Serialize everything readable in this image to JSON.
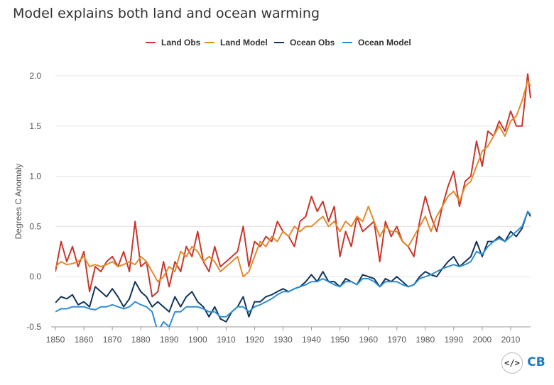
{
  "chart_data": {
    "type": "line",
    "title": "Model explains both land and ocean warming",
    "ylabel": "Degrees C Anomaly",
    "xlabel": "",
    "ylim": [
      -0.5,
      2.1
    ],
    "xlim": [
      1850,
      2017
    ],
    "xticks": [
      "1850",
      "1860",
      "1870",
      "1880",
      "1890",
      "1900",
      "1910",
      "1920",
      "1930",
      "1940",
      "1950",
      "1960",
      "1970",
      "1980",
      "1990",
      "2000",
      "2010"
    ],
    "yticks": [
      "2.0",
      "1.5",
      "1.0",
      "0.5",
      "0.0",
      "-0.5"
    ],
    "grid": "horizontal",
    "legend_position": "top-center",
    "series": [
      {
        "name": "Land Obs",
        "color": "#c8372d",
        "x": [
          1850,
          1852,
          1854,
          1856,
          1858,
          1860,
          1862,
          1864,
          1866,
          1868,
          1870,
          1872,
          1874,
          1876,
          1878,
          1880,
          1882,
          1884,
          1886,
          1888,
          1890,
          1892,
          1894,
          1896,
          1898,
          1900,
          1902,
          1904,
          1906,
          1908,
          1910,
          1912,
          1914,
          1916,
          1918,
          1920,
          1922,
          1924,
          1926,
          1928,
          1930,
          1932,
          1934,
          1936,
          1938,
          1940,
          1942,
          1944,
          1946,
          1948,
          1950,
          1952,
          1954,
          1956,
          1958,
          1960,
          1962,
          1964,
          1966,
          1968,
          1970,
          1972,
          1974,
          1976,
          1978,
          1980,
          1982,
          1984,
          1986,
          1988,
          1990,
          1992,
          1994,
          1996,
          1998,
          2000,
          2002,
          2004,
          2006,
          2008,
          2010,
          2012,
          2014,
          2016,
          2017
        ],
        "y": [
          0.05,
          0.35,
          0.15,
          0.3,
          0.1,
          0.25,
          -0.15,
          0.1,
          0.05,
          0.15,
          0.2,
          0.1,
          0.25,
          0.05,
          0.55,
          0.1,
          0.15,
          -0.2,
          -0.15,
          0.15,
          -0.1,
          0.15,
          0.05,
          0.3,
          0.2,
          0.45,
          0.15,
          0.05,
          0.3,
          0.1,
          0.15,
          0.2,
          0.25,
          0.5,
          0.1,
          0.35,
          0.3,
          0.4,
          0.35,
          0.55,
          0.45,
          0.4,
          0.3,
          0.55,
          0.6,
          0.8,
          0.65,
          0.75,
          0.55,
          0.7,
          0.2,
          0.45,
          0.3,
          0.6,
          0.45,
          0.5,
          0.55,
          0.15,
          0.55,
          0.4,
          0.5,
          0.35,
          0.3,
          0.2,
          0.55,
          0.8,
          0.6,
          0.45,
          0.7,
          0.9,
          1.05,
          0.7,
          0.95,
          1.0,
          1.35,
          1.1,
          1.45,
          1.4,
          1.55,
          1.45,
          1.65,
          1.5,
          1.5,
          2.02,
          1.78
        ]
      },
      {
        "name": "Land Model",
        "color": "#e18b2b",
        "x": [
          1850,
          1852,
          1854,
          1856,
          1858,
          1860,
          1862,
          1864,
          1866,
          1868,
          1870,
          1872,
          1874,
          1876,
          1878,
          1880,
          1882,
          1884,
          1886,
          1888,
          1890,
          1892,
          1894,
          1896,
          1898,
          1900,
          1902,
          1904,
          1906,
          1908,
          1910,
          1912,
          1914,
          1916,
          1918,
          1920,
          1922,
          1924,
          1926,
          1928,
          1930,
          1932,
          1934,
          1936,
          1938,
          1940,
          1942,
          1944,
          1946,
          1948,
          1950,
          1952,
          1954,
          1956,
          1958,
          1960,
          1962,
          1964,
          1966,
          1968,
          1970,
          1972,
          1974,
          1976,
          1978,
          1980,
          1982,
          1984,
          1986,
          1988,
          1990,
          1992,
          1994,
          1996,
          1998,
          2000,
          2002,
          2004,
          2006,
          2008,
          2010,
          2012,
          2014,
          2016,
          2017
        ],
        "y": [
          0.1,
          0.15,
          0.12,
          0.13,
          0.15,
          0.2,
          0.1,
          0.12,
          0.1,
          0.12,
          0.15,
          0.1,
          0.12,
          0.15,
          0.12,
          0.2,
          0.15,
          0.05,
          -0.05,
          0.0,
          0.1,
          0.05,
          0.25,
          0.2,
          0.3,
          0.25,
          0.15,
          0.2,
          0.15,
          0.05,
          0.1,
          0.15,
          0.2,
          0.0,
          0.05,
          0.2,
          0.35,
          0.3,
          0.4,
          0.35,
          0.45,
          0.4,
          0.5,
          0.45,
          0.5,
          0.5,
          0.55,
          0.6,
          0.5,
          0.55,
          0.45,
          0.55,
          0.5,
          0.6,
          0.55,
          0.7,
          0.55,
          0.4,
          0.5,
          0.45,
          0.45,
          0.35,
          0.3,
          0.4,
          0.5,
          0.6,
          0.45,
          0.6,
          0.7,
          0.8,
          0.85,
          0.75,
          0.9,
          0.95,
          1.1,
          1.25,
          1.3,
          1.4,
          1.5,
          1.4,
          1.55,
          1.6,
          1.75,
          1.95,
          1.9
        ]
      },
      {
        "name": "Ocean Obs",
        "color": "#12355b",
        "x": [
          1850,
          1852,
          1854,
          1856,
          1858,
          1860,
          1862,
          1864,
          1866,
          1868,
          1870,
          1872,
          1874,
          1876,
          1878,
          1880,
          1882,
          1884,
          1886,
          1888,
          1890,
          1892,
          1894,
          1896,
          1898,
          1900,
          1902,
          1904,
          1906,
          1908,
          1910,
          1912,
          1914,
          1916,
          1918,
          1920,
          1922,
          1924,
          1926,
          1928,
          1930,
          1932,
          1934,
          1936,
          1938,
          1940,
          1942,
          1944,
          1946,
          1948,
          1950,
          1952,
          1954,
          1956,
          1958,
          1960,
          1962,
          1964,
          1966,
          1968,
          1970,
          1972,
          1974,
          1976,
          1978,
          1980,
          1982,
          1984,
          1986,
          1988,
          1990,
          1992,
          1994,
          1996,
          1998,
          2000,
          2002,
          2004,
          2006,
          2008,
          2010,
          2012,
          2014,
          2016,
          2017
        ],
        "y": [
          -0.26,
          -0.2,
          -0.22,
          -0.18,
          -0.28,
          -0.25,
          -0.3,
          -0.1,
          -0.15,
          -0.2,
          -0.12,
          -0.2,
          -0.3,
          -0.22,
          -0.05,
          -0.15,
          -0.2,
          -0.3,
          -0.25,
          -0.3,
          -0.35,
          -0.2,
          -0.3,
          -0.2,
          -0.15,
          -0.25,
          -0.3,
          -0.4,
          -0.3,
          -0.42,
          -0.45,
          -0.35,
          -0.3,
          -0.2,
          -0.4,
          -0.25,
          -0.25,
          -0.2,
          -0.18,
          -0.15,
          -0.12,
          -0.15,
          -0.12,
          -0.1,
          -0.05,
          0.02,
          -0.05,
          0.05,
          -0.05,
          -0.05,
          -0.1,
          -0.02,
          -0.05,
          -0.08,
          0.02,
          0.0,
          -0.02,
          -0.1,
          -0.02,
          -0.05,
          0.0,
          -0.05,
          -0.1,
          -0.08,
          0.0,
          0.05,
          0.02,
          0.0,
          0.08,
          0.15,
          0.2,
          0.1,
          0.15,
          0.2,
          0.35,
          0.2,
          0.35,
          0.35,
          0.4,
          0.35,
          0.45,
          0.4,
          0.48,
          0.65,
          0.6
        ]
      },
      {
        "name": "Ocean Model",
        "color": "#2e8ed0",
        "x": [
          1850,
          1852,
          1854,
          1856,
          1858,
          1860,
          1862,
          1864,
          1866,
          1868,
          1870,
          1872,
          1874,
          1876,
          1878,
          1880,
          1882,
          1884,
          1886,
          1888,
          1890,
          1892,
          1894,
          1896,
          1898,
          1900,
          1902,
          1904,
          1906,
          1908,
          1910,
          1912,
          1914,
          1916,
          1918,
          1920,
          1922,
          1924,
          1926,
          1928,
          1930,
          1932,
          1934,
          1936,
          1938,
          1940,
          1942,
          1944,
          1946,
          1948,
          1950,
          1952,
          1954,
          1956,
          1958,
          1960,
          1962,
          1964,
          1966,
          1968,
          1970,
          1972,
          1974,
          1976,
          1978,
          1980,
          1982,
          1984,
          1986,
          1988,
          1990,
          1992,
          1994,
          1996,
          1998,
          2000,
          2002,
          2004,
          2006,
          2008,
          2010,
          2012,
          2014,
          2016,
          2017
        ],
        "y": [
          -0.35,
          -0.32,
          -0.32,
          -0.3,
          -0.3,
          -0.3,
          -0.32,
          -0.33,
          -0.3,
          -0.3,
          -0.28,
          -0.3,
          -0.32,
          -0.3,
          -0.25,
          -0.28,
          -0.3,
          -0.35,
          -0.55,
          -0.45,
          -0.5,
          -0.35,
          -0.35,
          -0.3,
          -0.3,
          -0.3,
          -0.32,
          -0.35,
          -0.35,
          -0.4,
          -0.4,
          -0.35,
          -0.3,
          -0.3,
          -0.35,
          -0.3,
          -0.28,
          -0.25,
          -0.22,
          -0.18,
          -0.15,
          -0.15,
          -0.12,
          -0.1,
          -0.08,
          -0.05,
          -0.05,
          -0.02,
          -0.05,
          -0.08,
          -0.1,
          -0.05,
          -0.05,
          -0.08,
          -0.02,
          -0.02,
          -0.05,
          -0.1,
          -0.05,
          -0.05,
          -0.05,
          -0.08,
          -0.1,
          -0.08,
          -0.02,
          0.0,
          0.02,
          0.05,
          0.08,
          0.1,
          0.12,
          0.1,
          0.12,
          0.15,
          0.25,
          0.22,
          0.3,
          0.35,
          0.38,
          0.35,
          0.4,
          0.45,
          0.5,
          0.65,
          0.62
        ]
      }
    ]
  },
  "branding": {
    "embed_label": "</>",
    "logo_label": "CB"
  }
}
